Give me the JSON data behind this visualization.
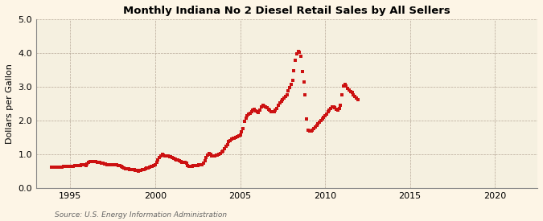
{
  "title": "Monthly Indiana No 2 Diesel Retail Sales by All Sellers",
  "ylabel": "Dollars per Gallon",
  "source": "Source: U.S. Energy Information Administration",
  "outer_bg": "#fdf5e6",
  "plot_bg": "#f5f0e0",
  "line_color": "#cc1111",
  "marker": "s",
  "marker_size": 2.2,
  "xlim_left": 1993.0,
  "xlim_right": 2022.5,
  "ylim_bottom": 0.0,
  "ylim_top": 5.0,
  "xticks": [
    1995,
    2000,
    2005,
    2010,
    2015,
    2020
  ],
  "yticks": [
    0.0,
    1.0,
    2.0,
    3.0,
    4.0,
    5.0
  ],
  "data": [
    [
      1993.917,
      0.615
    ],
    [
      1994.0,
      0.61
    ],
    [
      1994.083,
      0.61
    ],
    [
      1994.167,
      0.615
    ],
    [
      1994.25,
      0.618
    ],
    [
      1994.333,
      0.622
    ],
    [
      1994.417,
      0.625
    ],
    [
      1994.5,
      0.628
    ],
    [
      1994.583,
      0.63
    ],
    [
      1994.667,
      0.635
    ],
    [
      1994.75,
      0.638
    ],
    [
      1994.833,
      0.64
    ],
    [
      1994.917,
      0.642
    ],
    [
      1995.0,
      0.645
    ],
    [
      1995.083,
      0.648
    ],
    [
      1995.167,
      0.652
    ],
    [
      1995.25,
      0.655
    ],
    [
      1995.333,
      0.66
    ],
    [
      1995.417,
      0.665
    ],
    [
      1995.5,
      0.67
    ],
    [
      1995.583,
      0.675
    ],
    [
      1995.667,
      0.68
    ],
    [
      1995.75,
      0.685
    ],
    [
      1995.833,
      0.68
    ],
    [
      1995.917,
      0.675
    ],
    [
      1996.0,
      0.72
    ],
    [
      1996.083,
      0.76
    ],
    [
      1996.167,
      0.78
    ],
    [
      1996.25,
      0.79
    ],
    [
      1996.333,
      0.795
    ],
    [
      1996.417,
      0.79
    ],
    [
      1996.5,
      0.78
    ],
    [
      1996.583,
      0.77
    ],
    [
      1996.667,
      0.76
    ],
    [
      1996.75,
      0.75
    ],
    [
      1996.833,
      0.74
    ],
    [
      1996.917,
      0.73
    ],
    [
      1997.0,
      0.72
    ],
    [
      1997.083,
      0.71
    ],
    [
      1997.167,
      0.7
    ],
    [
      1997.25,
      0.695
    ],
    [
      1997.333,
      0.692
    ],
    [
      1997.417,
      0.69
    ],
    [
      1997.5,
      0.688
    ],
    [
      1997.583,
      0.685
    ],
    [
      1997.667,
      0.682
    ],
    [
      1997.75,
      0.68
    ],
    [
      1997.833,
      0.672
    ],
    [
      1997.917,
      0.66
    ],
    [
      1998.0,
      0.64
    ],
    [
      1998.083,
      0.62
    ],
    [
      1998.167,
      0.6
    ],
    [
      1998.25,
      0.58
    ],
    [
      1998.333,
      0.57
    ],
    [
      1998.417,
      0.56
    ],
    [
      1998.5,
      0.55
    ],
    [
      1998.583,
      0.545
    ],
    [
      1998.667,
      0.54
    ],
    [
      1998.75,
      0.535
    ],
    [
      1998.833,
      0.53
    ],
    [
      1998.917,
      0.52
    ],
    [
      1999.0,
      0.51
    ],
    [
      1999.083,
      0.515
    ],
    [
      1999.167,
      0.525
    ],
    [
      1999.25,
      0.54
    ],
    [
      1999.333,
      0.555
    ],
    [
      1999.417,
      0.57
    ],
    [
      1999.5,
      0.585
    ],
    [
      1999.583,
      0.6
    ],
    [
      1999.667,
      0.615
    ],
    [
      1999.75,
      0.63
    ],
    [
      1999.833,
      0.645
    ],
    [
      1999.917,
      0.658
    ],
    [
      2000.0,
      0.7
    ],
    [
      2000.083,
      0.76
    ],
    [
      2000.167,
      0.83
    ],
    [
      2000.25,
      0.9
    ],
    [
      2000.333,
      0.96
    ],
    [
      2000.417,
      0.99
    ],
    [
      2000.5,
      0.975
    ],
    [
      2000.583,
      0.96
    ],
    [
      2000.667,
      0.95
    ],
    [
      2000.75,
      0.94
    ],
    [
      2000.833,
      0.93
    ],
    [
      2000.917,
      0.92
    ],
    [
      2001.0,
      0.9
    ],
    [
      2001.083,
      0.88
    ],
    [
      2001.167,
      0.86
    ],
    [
      2001.25,
      0.84
    ],
    [
      2001.333,
      0.82
    ],
    [
      2001.417,
      0.8
    ],
    [
      2001.5,
      0.785
    ],
    [
      2001.583,
      0.77
    ],
    [
      2001.667,
      0.76
    ],
    [
      2001.75,
      0.75
    ],
    [
      2001.833,
      0.73
    ],
    [
      2001.917,
      0.66
    ],
    [
      2002.0,
      0.64
    ],
    [
      2002.083,
      0.645
    ],
    [
      2002.167,
      0.65
    ],
    [
      2002.25,
      0.655
    ],
    [
      2002.333,
      0.66
    ],
    [
      2002.417,
      0.668
    ],
    [
      2002.5,
      0.675
    ],
    [
      2002.583,
      0.682
    ],
    [
      2002.667,
      0.69
    ],
    [
      2002.75,
      0.7
    ],
    [
      2002.833,
      0.73
    ],
    [
      2002.917,
      0.8
    ],
    [
      2003.0,
      0.9
    ],
    [
      2003.083,
      0.97
    ],
    [
      2003.167,
      1.03
    ],
    [
      2003.25,
      0.99
    ],
    [
      2003.333,
      0.96
    ],
    [
      2003.417,
      0.95
    ],
    [
      2003.5,
      0.96
    ],
    [
      2003.583,
      0.97
    ],
    [
      2003.667,
      0.98
    ],
    [
      2003.75,
      0.995
    ],
    [
      2003.833,
      1.02
    ],
    [
      2003.917,
      1.06
    ],
    [
      2004.0,
      1.1
    ],
    [
      2004.083,
      1.16
    ],
    [
      2004.167,
      1.23
    ],
    [
      2004.25,
      1.29
    ],
    [
      2004.333,
      1.37
    ],
    [
      2004.417,
      1.41
    ],
    [
      2004.5,
      1.44
    ],
    [
      2004.583,
      1.465
    ],
    [
      2004.667,
      1.48
    ],
    [
      2004.75,
      1.5
    ],
    [
      2004.833,
      1.52
    ],
    [
      2004.917,
      1.545
    ],
    [
      2005.0,
      1.58
    ],
    [
      2005.083,
      1.66
    ],
    [
      2005.167,
      1.76
    ],
    [
      2005.25,
      1.98
    ],
    [
      2005.333,
      2.08
    ],
    [
      2005.417,
      2.13
    ],
    [
      2005.5,
      2.18
    ],
    [
      2005.583,
      2.22
    ],
    [
      2005.667,
      2.26
    ],
    [
      2005.75,
      2.3
    ],
    [
      2005.833,
      2.33
    ],
    [
      2005.917,
      2.29
    ],
    [
      2006.0,
      2.25
    ],
    [
      2006.083,
      2.23
    ],
    [
      2006.167,
      2.3
    ],
    [
      2006.25,
      2.4
    ],
    [
      2006.333,
      2.45
    ],
    [
      2006.417,
      2.43
    ],
    [
      2006.5,
      2.4
    ],
    [
      2006.583,
      2.37
    ],
    [
      2006.667,
      2.34
    ],
    [
      2006.75,
      2.31
    ],
    [
      2006.833,
      2.27
    ],
    [
      2006.917,
      2.25
    ],
    [
      2007.0,
      2.26
    ],
    [
      2007.083,
      2.3
    ],
    [
      2007.167,
      2.36
    ],
    [
      2007.25,
      2.46
    ],
    [
      2007.333,
      2.52
    ],
    [
      2007.417,
      2.57
    ],
    [
      2007.5,
      2.62
    ],
    [
      2007.583,
      2.67
    ],
    [
      2007.667,
      2.72
    ],
    [
      2007.75,
      2.77
    ],
    [
      2007.833,
      2.87
    ],
    [
      2007.917,
      2.97
    ],
    [
      2008.0,
      3.08
    ],
    [
      2008.083,
      3.18
    ],
    [
      2008.167,
      3.48
    ],
    [
      2008.25,
      3.78
    ],
    [
      2008.333,
      3.98
    ],
    [
      2008.417,
      4.04
    ],
    [
      2008.5,
      4.02
    ],
    [
      2008.583,
      3.9
    ],
    [
      2008.667,
      3.45
    ],
    [
      2008.75,
      3.15
    ],
    [
      2008.833,
      2.75
    ],
    [
      2008.917,
      2.05
    ],
    [
      2009.0,
      1.72
    ],
    [
      2009.083,
      1.68
    ],
    [
      2009.167,
      1.68
    ],
    [
      2009.25,
      1.72
    ],
    [
      2009.333,
      1.76
    ],
    [
      2009.417,
      1.8
    ],
    [
      2009.5,
      1.85
    ],
    [
      2009.583,
      1.9
    ],
    [
      2009.667,
      1.95
    ],
    [
      2009.75,
      2.0
    ],
    [
      2009.833,
      2.05
    ],
    [
      2009.917,
      2.1
    ],
    [
      2010.0,
      2.15
    ],
    [
      2010.083,
      2.2
    ],
    [
      2010.167,
      2.25
    ],
    [
      2010.25,
      2.3
    ],
    [
      2010.333,
      2.35
    ],
    [
      2010.417,
      2.4
    ],
    [
      2010.5,
      2.4
    ],
    [
      2010.583,
      2.37
    ],
    [
      2010.667,
      2.34
    ],
    [
      2010.75,
      2.31
    ],
    [
      2010.833,
      2.36
    ],
    [
      2010.917,
      2.46
    ],
    [
      2011.0,
      2.76
    ],
    [
      2011.083,
      3.02
    ],
    [
      2011.167,
      3.08
    ],
    [
      2011.25,
      3.02
    ],
    [
      2011.333,
      2.96
    ],
    [
      2011.417,
      2.9
    ],
    [
      2011.5,
      2.86
    ],
    [
      2011.583,
      2.82
    ],
    [
      2011.667,
      2.77
    ],
    [
      2011.75,
      2.72
    ],
    [
      2011.833,
      2.67
    ],
    [
      2011.917,
      2.62
    ]
  ]
}
